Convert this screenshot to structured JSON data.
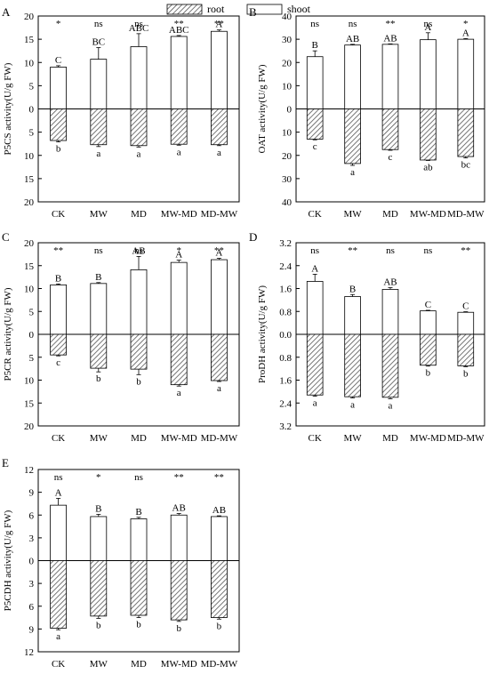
{
  "legend": {
    "items": [
      {
        "label": "root",
        "pattern": "hatch"
      },
      {
        "label": "shoot",
        "pattern": "open"
      }
    ]
  },
  "chart_data": [
    {
      "panel": "A",
      "type": "bar",
      "ylabel": "P5CS activity(U/g  FW)",
      "categories": [
        "CK",
        "MW",
        "MD",
        "MW-MD",
        "MD-MW"
      ],
      "ylim": [
        -20,
        20
      ],
      "y_ticks": [
        20,
        15,
        10,
        5,
        0,
        5,
        10,
        15,
        20
      ],
      "significance": [
        "*",
        "ns",
        "ns",
        "**",
        "**"
      ],
      "series": [
        {
          "name": "shoot",
          "values": [
            9.0,
            10.7,
            13.4,
            15.6,
            16.7
          ],
          "errors": [
            0.3,
            2.5,
            2.8,
            0.2,
            0.3
          ],
          "letters": [
            "C",
            "BC",
            "ABC",
            "ABC",
            "A"
          ]
        },
        {
          "name": "root",
          "values": [
            6.8,
            7.7,
            7.9,
            7.6,
            7.7
          ],
          "errors": [
            0.3,
            0.4,
            0.3,
            0.2,
            0.2
          ],
          "letters": [
            "b",
            "a",
            "a",
            "a",
            "a"
          ]
        }
      ]
    },
    {
      "panel": "B",
      "type": "bar",
      "ylabel": "OAT activity(U/g  FW)",
      "categories": [
        "CK",
        "MW",
        "MD",
        "MW-MD",
        "MD-MW"
      ],
      "ylim": [
        -40,
        40
      ],
      "y_ticks": [
        40,
        30,
        20,
        10,
        0,
        10,
        20,
        30,
        40
      ],
      "significance": [
        "ns",
        "ns",
        "**",
        "ns",
        "*"
      ],
      "series": [
        {
          "name": "shoot",
          "values": [
            22.5,
            27.5,
            27.8,
            29.8,
            30.0
          ],
          "errors": [
            2.5,
            0.3,
            0.2,
            3.0,
            0.3
          ],
          "letters": [
            "B",
            "AB",
            "AB",
            "A",
            "A"
          ]
        },
        {
          "name": "root",
          "values": [
            13.0,
            23.5,
            17.5,
            22.0,
            20.5
          ],
          "errors": [
            0.3,
            0.8,
            0.3,
            0.2,
            0.6
          ],
          "letters": [
            "c",
            "a",
            "c",
            "ab",
            "bc"
          ]
        }
      ]
    },
    {
      "panel": "C",
      "type": "bar",
      "ylabel": "P5CR activity(U/g  FW)",
      "categories": [
        "CK",
        "MW",
        "MD",
        "MW-MD",
        "MD-MW"
      ],
      "ylim": [
        -20,
        20
      ],
      "y_ticks": [
        20,
        15,
        10,
        5,
        0,
        5,
        10,
        15,
        20
      ],
      "significance": [
        "**",
        "ns",
        "ns",
        "*",
        "**"
      ],
      "series": [
        {
          "name": "shoot",
          "values": [
            10.8,
            11.1,
            14.1,
            15.7,
            16.3
          ],
          "errors": [
            0.2,
            0.2,
            2.9,
            0.5,
            0.3
          ],
          "letters": [
            "B",
            "B",
            "AB",
            "A",
            "A"
          ]
        },
        {
          "name": "root",
          "values": [
            4.5,
            7.4,
            7.6,
            11.0,
            10.1
          ],
          "errors": [
            0.2,
            0.8,
            1.2,
            0.3,
            0.2
          ],
          "letters": [
            "c",
            "b",
            "b",
            "a",
            "a"
          ]
        }
      ]
    },
    {
      "panel": "D",
      "type": "bar",
      "ylabel": "ProDH activity(U/g  FW)",
      "categories": [
        "CK",
        "MW",
        "MD",
        "MW-MD",
        "MD-MW"
      ],
      "ylim": [
        -3.2,
        3.2
      ],
      "y_ticks": [
        "3.2",
        "2.4",
        "1.6",
        "0.8",
        "0.0",
        "0.8",
        "1.6",
        "2.4",
        "3.2"
      ],
      "significance": [
        "ns",
        "**",
        "ns",
        "ns",
        "**"
      ],
      "series": [
        {
          "name": "shoot",
          "values": [
            1.85,
            1.32,
            1.57,
            0.82,
            0.77
          ],
          "errors": [
            0.25,
            0.07,
            0.06,
            0.02,
            0.02
          ],
          "letters": [
            "A",
            "B",
            "AB",
            "C",
            "C"
          ]
        },
        {
          "name": "root",
          "values": [
            2.12,
            2.18,
            2.2,
            1.08,
            1.1
          ],
          "errors": [
            0.04,
            0.04,
            0.05,
            0.03,
            0.03
          ],
          "letters": [
            "a",
            "a",
            "a",
            "b",
            "b"
          ]
        }
      ]
    },
    {
      "panel": "E",
      "type": "bar",
      "ylabel": "P5CDH activity(U/g  FW)",
      "categories": [
        "CK",
        "MW",
        "MD",
        "MW-MD",
        "MD-MW"
      ],
      "ylim": [
        -12,
        12
      ],
      "y_ticks": [
        12,
        9,
        6,
        3,
        0,
        3,
        6,
        9,
        12
      ],
      "significance": [
        "ns",
        "*",
        "ns",
        "**",
        "**"
      ],
      "series": [
        {
          "name": "shoot",
          "values": [
            7.3,
            5.8,
            5.5,
            6.0,
            5.8
          ],
          "errors": [
            0.9,
            0.3,
            0.2,
            0.2,
            0.1
          ],
          "letters": [
            "A",
            "B",
            "B",
            "AB",
            "AB"
          ]
        },
        {
          "name": "root",
          "values": [
            8.9,
            7.3,
            7.2,
            7.8,
            7.5
          ],
          "errors": [
            0.2,
            0.3,
            0.3,
            0.2,
            0.2
          ],
          "letters": [
            "a",
            "b",
            "b",
            "b",
            "b"
          ]
        }
      ]
    }
  ]
}
